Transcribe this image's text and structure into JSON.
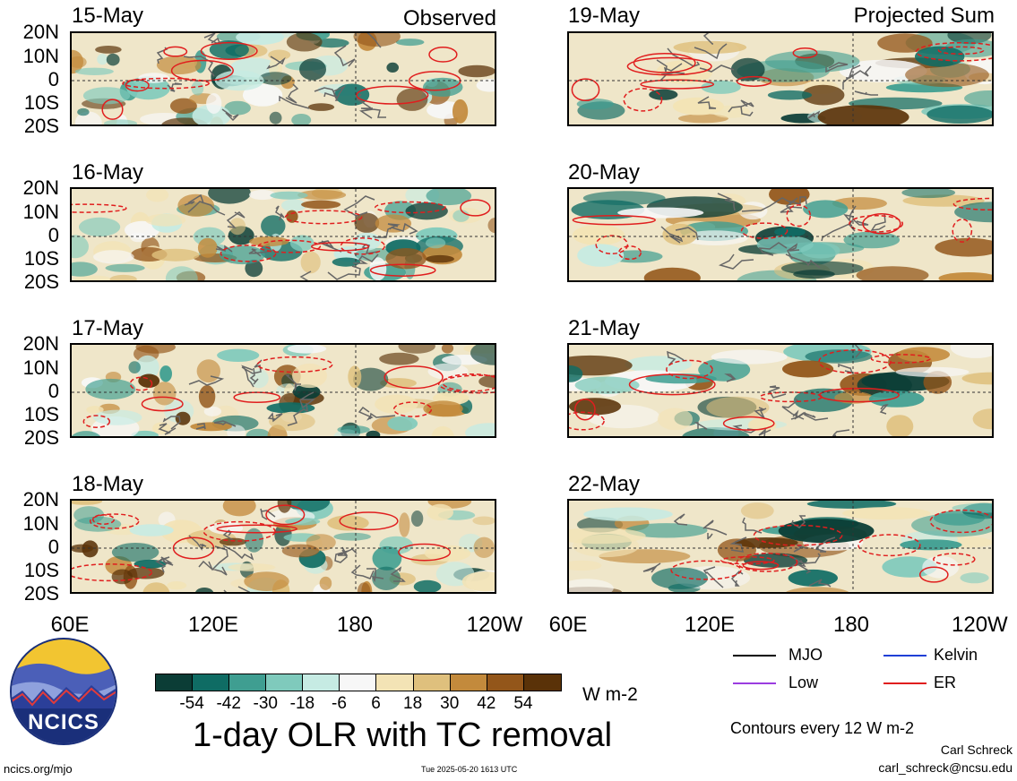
{
  "headers": {
    "observed": "Observed",
    "projected": "Projected Sum"
  },
  "left_dates": [
    "15-May",
    "16-May",
    "17-May",
    "18-May"
  ],
  "right_dates": [
    "19-May",
    "20-May",
    "21-May",
    "22-May"
  ],
  "lat_labels": [
    "20N",
    "10N",
    "0",
    "10S",
    "20S"
  ],
  "lon_labels": [
    "60E",
    "120E",
    "180",
    "120W"
  ],
  "colorbar": {
    "ticks": [
      "-54",
      "-42",
      "-30",
      "-18",
      "-6",
      "6",
      "18",
      "30",
      "42",
      "54"
    ],
    "unit": "W m-2",
    "colors": [
      "#0b3d36",
      "#0f6c64",
      "#3f9e91",
      "#7fcabc",
      "#c6ebe3",
      "#f7f7f7",
      "#f3e3b5",
      "#dfc07d",
      "#c38a3c",
      "#93561a",
      "#5a3208"
    ]
  },
  "main_title": "1-day OLR with TC removal",
  "legend": [
    {
      "label": "MJO",
      "color": "#000000"
    },
    {
      "label": "Kelvin",
      "color": "#1f3fd6"
    },
    {
      "label": "Low",
      "color": "#9b3ce0"
    },
    {
      "label": "ER",
      "color": "#e01e1e"
    }
  ],
  "contour_note": "Contours every 12 W m-2",
  "author": "Carl Schreck",
  "email": "carl_schreck@ncsu.edu",
  "site": "ncics.org/mjo",
  "timestamp": "Tue 2025-05-20 1613 UTC",
  "logo_text": "NCICS"
}
